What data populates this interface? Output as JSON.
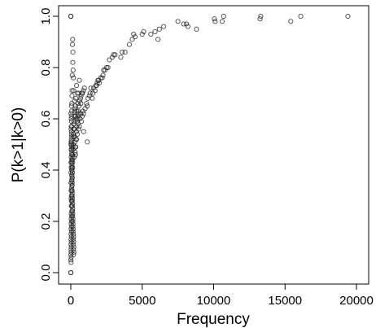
{
  "chart_data": {
    "type": "scatter",
    "title": "",
    "xlabel": "Frequency",
    "ylabel": "P(k>1|k>0)",
    "xlim": [
      0,
      20000
    ],
    "ylim": [
      0,
      1
    ],
    "x_ticks": [
      0,
      5000,
      10000,
      15000,
      20000
    ],
    "y_ticks": [
      0.0,
      0.2,
      0.4,
      0.6,
      0.8,
      1.0
    ],
    "x_tick_labels": [
      "0",
      "5000",
      "10000",
      "15000",
      "20000"
    ],
    "y_tick_labels": [
      "0.0",
      "0.2",
      "0.4",
      "0.6",
      "0.8",
      "1.0"
    ],
    "grid": false,
    "legend": "none",
    "marker": "open-circle",
    "series": [
      {
        "points": [
          [
            19400,
            1.0
          ],
          [
            16100,
            1.0
          ],
          [
            15400,
            0.98
          ],
          [
            13300,
            1.0
          ],
          [
            13250,
            0.99
          ],
          [
            10700,
            1.0
          ],
          [
            10600,
            0.98
          ],
          [
            10100,
            0.98
          ],
          [
            10050,
            0.99
          ],
          [
            8800,
            0.95
          ],
          [
            8200,
            0.96
          ],
          [
            8100,
            0.97
          ],
          [
            7900,
            0.97
          ],
          [
            7500,
            0.98
          ],
          [
            6500,
            0.96
          ],
          [
            6200,
            0.95
          ],
          [
            6100,
            0.91
          ],
          [
            5900,
            0.94
          ],
          [
            5600,
            0.93
          ],
          [
            5100,
            0.94
          ],
          [
            5000,
            0.93
          ],
          [
            4500,
            0.92
          ],
          [
            4400,
            0.93
          ],
          [
            4300,
            0.91
          ],
          [
            4100,
            0.89
          ],
          [
            3800,
            0.86
          ],
          [
            3600,
            0.86
          ],
          [
            3500,
            0.84
          ],
          [
            3100,
            0.85
          ],
          [
            3000,
            0.85
          ],
          [
            2900,
            0.84
          ],
          [
            2700,
            0.83
          ],
          [
            2600,
            0.8
          ],
          [
            2500,
            0.8
          ],
          [
            2400,
            0.79
          ],
          [
            2300,
            0.79
          ],
          [
            2250,
            0.77
          ],
          [
            2200,
            0.76
          ],
          [
            2100,
            0.76
          ],
          [
            2000,
            0.74
          ],
          [
            1950,
            0.75
          ],
          [
            1900,
            0.75
          ],
          [
            1850,
            0.74
          ],
          [
            1800,
            0.73
          ],
          [
            1750,
            0.73
          ],
          [
            1700,
            0.71
          ],
          [
            1600,
            0.72
          ],
          [
            1550,
            0.7
          ],
          [
            1500,
            0.68
          ],
          [
            1400,
            0.72
          ],
          [
            1350,
            0.7
          ],
          [
            1300,
            0.69
          ],
          [
            1200,
            0.68
          ],
          [
            1150,
            0.65
          ],
          [
            1100,
            0.66
          ],
          [
            1000,
            0.64
          ],
          [
            950,
            0.72
          ],
          [
            900,
            0.62
          ],
          [
            850,
            0.63
          ],
          [
            800,
            0.61
          ],
          [
            750,
            0.59
          ],
          [
            700,
            0.62
          ],
          [
            650,
            0.6
          ],
          [
            600,
            0.57
          ],
          [
            550,
            0.56
          ],
          [
            500,
            0.58
          ],
          [
            450,
            0.54
          ],
          [
            400,
            0.52
          ],
          [
            350,
            0.49
          ],
          [
            300,
            0.47
          ],
          [
            250,
            0.45
          ],
          [
            1150,
            0.51
          ],
          [
            900,
            0.55
          ],
          [
            700,
            0.66
          ],
          [
            500,
            0.66
          ],
          [
            550,
            0.7
          ],
          [
            450,
            0.7
          ],
          [
            600,
            0.75
          ],
          [
            400,
            0.73
          ],
          [
            350,
            0.68
          ],
          [
            300,
            0.64
          ],
          [
            250,
            0.67
          ],
          [
            200,
            0.71
          ],
          [
            150,
            0.86
          ],
          [
            130,
            0.91
          ],
          [
            120,
            0.89
          ],
          [
            140,
            0.82
          ],
          [
            160,
            0.79
          ],
          [
            180,
            0.76
          ],
          [
            100,
            0.77
          ],
          [
            90,
            0.71
          ],
          [
            80,
            0.69
          ],
          [
            70,
            0.66
          ],
          [
            60,
            0.63
          ],
          [
            60,
            0.57
          ],
          [
            50,
            0.55
          ],
          [
            40,
            0.52
          ],
          [
            200,
            0.58
          ],
          [
            180,
            0.54
          ],
          [
            150,
            0.49
          ],
          [
            120,
            0.46
          ],
          [
            100,
            0.44
          ],
          [
            90,
            0.41
          ],
          [
            80,
            0.38
          ],
          [
            70,
            0.36
          ],
          [
            60,
            0.33
          ],
          [
            50,
            0.3
          ],
          [
            40,
            0.28
          ],
          [
            35,
            0.26
          ],
          [
            30,
            0.23
          ],
          [
            25,
            0.21
          ],
          [
            20,
            0.19
          ],
          [
            18,
            0.17
          ],
          [
            15,
            0.15
          ],
          [
            12,
            0.13
          ],
          [
            10,
            0.11
          ],
          [
            10,
            0.09
          ],
          [
            8,
            0.07
          ],
          [
            5,
            0.05
          ],
          [
            3,
            1.0
          ],
          [
            5,
            1.0
          ],
          [
            3,
            0.0
          ],
          [
            5,
            0.0
          ],
          [
            8,
            0.5
          ],
          [
            10,
            0.43
          ],
          [
            12,
            0.39
          ],
          [
            15,
            0.35
          ],
          [
            20,
            0.32
          ],
          [
            25,
            0.29
          ],
          [
            30,
            0.41
          ],
          [
            35,
            0.45
          ],
          [
            40,
            0.48
          ],
          [
            45,
            0.61
          ],
          [
            50,
            0.65
          ],
          [
            55,
            0.59
          ],
          [
            60,
            0.53
          ],
          [
            65,
            0.5
          ],
          [
            70,
            0.47
          ],
          [
            75,
            0.44
          ],
          [
            80,
            0.42
          ],
          [
            85,
            0.4
          ],
          [
            90,
            0.37
          ],
          [
            95,
            0.34
          ],
          [
            100,
            0.31
          ],
          [
            110,
            0.29
          ],
          [
            120,
            0.27
          ],
          [
            130,
            0.25
          ],
          [
            140,
            0.23
          ],
          [
            150,
            0.21
          ],
          [
            160,
            0.19
          ],
          [
            170,
            0.17
          ],
          [
            180,
            0.15
          ],
          [
            190,
            0.14
          ],
          [
            200,
            0.12
          ],
          [
            210,
            0.1
          ],
          [
            220,
            0.08
          ],
          [
            15,
            0.62
          ],
          [
            18,
            0.56
          ],
          [
            22,
            0.51
          ],
          [
            28,
            0.48
          ],
          [
            32,
            0.6
          ],
          [
            38,
            0.57
          ],
          [
            42,
            0.54
          ],
          [
            48,
            0.51
          ],
          [
            52,
            0.49
          ],
          [
            58,
            0.46
          ],
          [
            62,
            0.43
          ],
          [
            68,
            0.4
          ],
          [
            72,
            0.38
          ],
          [
            78,
            0.36
          ],
          [
            82,
            0.34
          ],
          [
            88,
            0.32
          ],
          [
            92,
            0.3
          ],
          [
            98,
            0.28
          ],
          [
            105,
            0.26
          ],
          [
            115,
            0.24
          ],
          [
            125,
            0.22
          ],
          [
            135,
            0.2
          ],
          [
            145,
            0.18
          ],
          [
            155,
            0.16
          ],
          [
            165,
            0.13
          ],
          [
            175,
            0.11
          ],
          [
            185,
            0.09
          ],
          [
            195,
            0.07
          ],
          [
            20,
            0.04
          ],
          [
            25,
            0.06
          ],
          [
            30,
            0.08
          ],
          [
            35,
            0.1
          ],
          [
            40,
            0.12
          ],
          [
            45,
            0.14
          ],
          [
            50,
            0.16
          ],
          [
            55,
            0.18
          ],
          [
            60,
            0.2
          ],
          [
            65,
            0.22
          ],
          [
            70,
            0.24
          ],
          [
            75,
            0.26
          ],
          [
            80,
            0.28
          ],
          [
            85,
            0.3
          ],
          [
            90,
            0.32
          ],
          [
            95,
            0.35
          ],
          [
            100,
            0.37
          ],
          [
            110,
            0.39
          ],
          [
            120,
            0.41
          ],
          [
            130,
            0.43
          ],
          [
            140,
            0.45
          ],
          [
            160,
            0.48
          ],
          [
            170,
            0.5
          ],
          [
            190,
            0.53
          ],
          [
            210,
            0.56
          ],
          [
            230,
            0.59
          ],
          [
            260,
            0.61
          ],
          [
            280,
            0.63
          ],
          [
            320,
            0.65
          ],
          [
            340,
            0.61
          ],
          [
            380,
            0.6
          ],
          [
            420,
            0.63
          ],
          [
            480,
            0.61
          ],
          [
            520,
            0.63
          ],
          [
            580,
            0.65
          ],
          [
            620,
            0.67
          ],
          [
            680,
            0.68
          ],
          [
            720,
            0.69
          ],
          [
            780,
            0.7
          ],
          [
            820,
            0.7
          ],
          [
            880,
            0.71
          ],
          [
            250,
            0.56
          ],
          [
            270,
            0.53
          ],
          [
            290,
            0.51
          ],
          [
            310,
            0.49
          ],
          [
            330,
            0.46
          ],
          [
            360,
            0.52
          ],
          [
            390,
            0.55
          ],
          [
            410,
            0.57
          ],
          [
            440,
            0.59
          ],
          [
            470,
            0.6
          ],
          [
            510,
            0.62
          ]
        ]
      }
    ]
  }
}
